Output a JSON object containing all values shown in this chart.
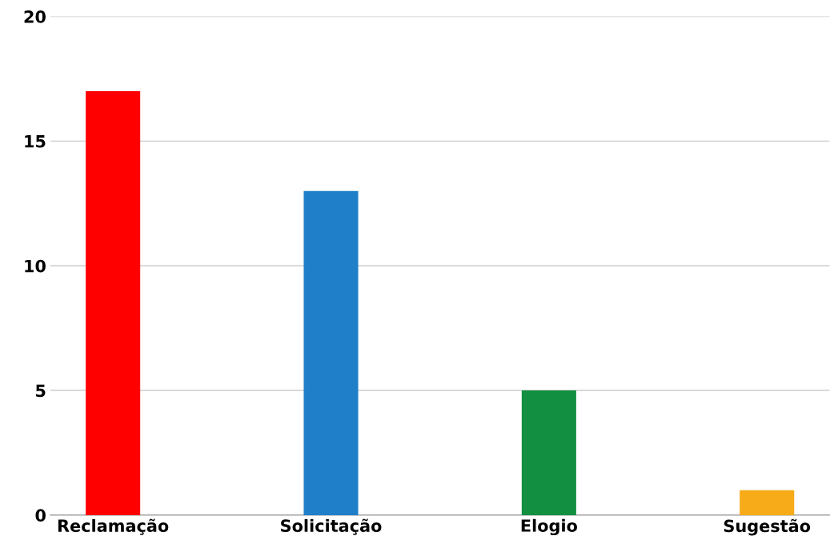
{
  "chart_data": {
    "type": "bar",
    "categories": [
      "Reclamação",
      "Solicitação",
      "Elogio",
      "Sugestão"
    ],
    "values": [
      17,
      13,
      5,
      1
    ],
    "colors": [
      "#ff0000",
      "#1f7fc8",
      "#138f42",
      "#f7ab18"
    ],
    "ylim": [
      0,
      20
    ],
    "yticks": [
      0,
      5,
      10,
      15,
      20
    ],
    "grid": "y"
  }
}
